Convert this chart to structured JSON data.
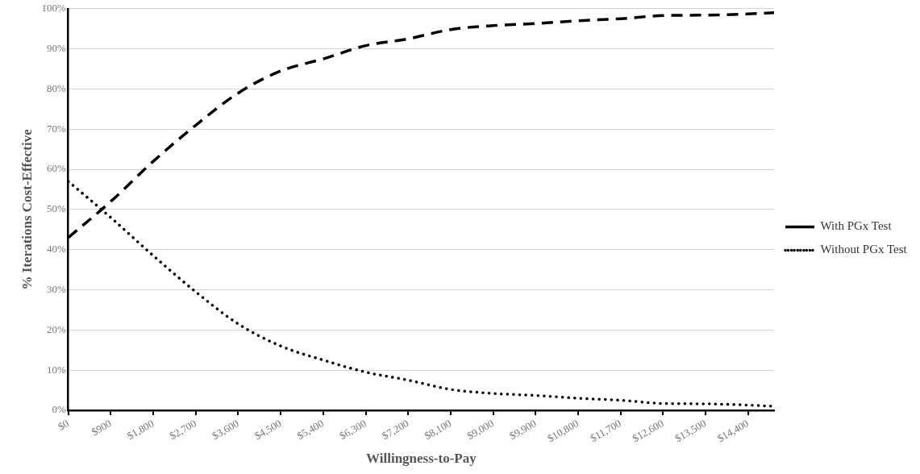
{
  "chart_data": {
    "type": "line",
    "xlabel": "Willingness-to-Pay",
    "ylabel": "% Iterations Cost-Effective",
    "x": [
      0,
      900,
      1800,
      2700,
      3600,
      4500,
      5400,
      6300,
      7200,
      8100,
      9000,
      9900,
      10800,
      11700,
      12600,
      13500,
      14400,
      14950
    ],
    "series": [
      {
        "name": "With PGx Test",
        "color": "#000000",
        "line_style": "dashed",
        "values": [
          43,
          52,
          62,
          71,
          79,
          84.5,
          87.5,
          90.8,
          92.5,
          94.8,
          95.8,
          96.3,
          97,
          97.5,
          98.3,
          98.4,
          98.7,
          99
        ]
      },
      {
        "name": "Without PGx Test",
        "color": "#000000",
        "line_style": "dotted",
        "values": [
          57,
          48,
          38.5,
          29.5,
          21.5,
          16,
          12.5,
          9.5,
          7.5,
          5.2,
          4.2,
          3.7,
          3,
          2.5,
          1.7,
          1.6,
          1.3,
          1
        ]
      }
    ],
    "xlim": [
      0,
      14950
    ],
    "xticks": [
      {
        "value": 0,
        "label": "$0"
      },
      {
        "value": 900,
        "label": "$900"
      },
      {
        "value": 1800,
        "label": "$1,800"
      },
      {
        "value": 2700,
        "label": "$2,700"
      },
      {
        "value": 3600,
        "label": "$3,600"
      },
      {
        "value": 4500,
        "label": "$4,500"
      },
      {
        "value": 5400,
        "label": "$5,400"
      },
      {
        "value": 6300,
        "label": "$6,300"
      },
      {
        "value": 7200,
        "label": "$7,200"
      },
      {
        "value": 8100,
        "label": "$8,100"
      },
      {
        "value": 9000,
        "label": "$9,000"
      },
      {
        "value": 9900,
        "label": "$9,900"
      },
      {
        "value": 10800,
        "label": "$10,800"
      },
      {
        "value": 11700,
        "label": "$11,700"
      },
      {
        "value": 12600,
        "label": "$12,600"
      },
      {
        "value": 13500,
        "label": "$13,500"
      },
      {
        "value": 14400,
        "label": "$14,400"
      }
    ],
    "ylim": [
      0,
      100
    ],
    "yticks": [
      {
        "value": 0,
        "label": "0%"
      },
      {
        "value": 10,
        "label": "10%"
      },
      {
        "value": 20,
        "label": "20%"
      },
      {
        "value": 30,
        "label": "30%"
      },
      {
        "value": 40,
        "label": "40%"
      },
      {
        "value": 50,
        "label": "50%"
      },
      {
        "value": 60,
        "label": "60%"
      },
      {
        "value": 70,
        "label": "70%"
      },
      {
        "value": 80,
        "label": "80%"
      },
      {
        "value": 90,
        "label": "90%"
      },
      {
        "value": 100,
        "label": "100%"
      }
    ],
    "grid": "y",
    "legend": "right",
    "marker": "none"
  }
}
